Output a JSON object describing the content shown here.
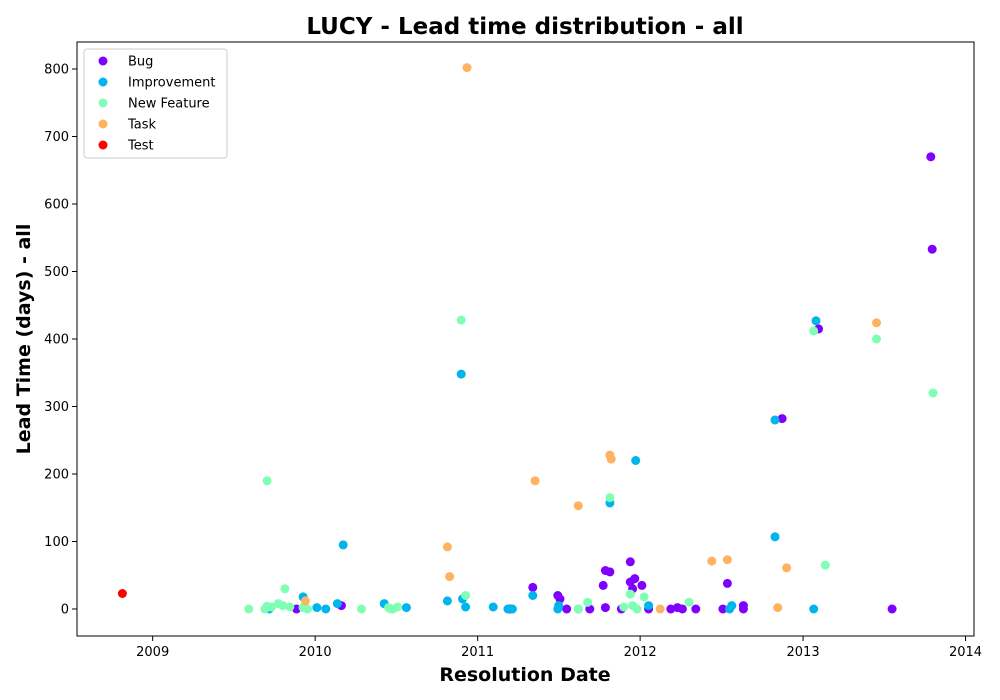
{
  "chart_data": {
    "type": "scatter",
    "title": "LUCY - Lead time distribution - all",
    "xlabel": "Resolution Date",
    "ylabel": "Lead Time (days) - all",
    "xlim": [
      "2008-07-15",
      "2014-01-20"
    ],
    "ylim": [
      -40,
      840
    ],
    "x_ticks": [
      "2009",
      "2010",
      "2011",
      "2012",
      "2013",
      "2014"
    ],
    "y_ticks": [
      0,
      100,
      200,
      300,
      400,
      500,
      600,
      700,
      800
    ],
    "grid": false,
    "legend_position": "top-left",
    "series": [
      {
        "name": "Bug",
        "color": "#8000ff",
        "points": [
          [
            "2009-11-20",
            0
          ],
          [
            "2010-03-01",
            5
          ],
          [
            "2011-03-15",
            0
          ],
          [
            "2011-05-05",
            32
          ],
          [
            "2011-06-30",
            20
          ],
          [
            "2011-07-05",
            15
          ],
          [
            "2011-07-20",
            0
          ],
          [
            "2011-09-10",
            0
          ],
          [
            "2011-10-10",
            35
          ],
          [
            "2011-10-15",
            57
          ],
          [
            "2011-10-25",
            55
          ],
          [
            "2011-10-15",
            2
          ],
          [
            "2011-11-20",
            0
          ],
          [
            "2011-12-10",
            70
          ],
          [
            "2011-12-10",
            40
          ],
          [
            "2011-12-20",
            45
          ],
          [
            "2012-01-05",
            35
          ],
          [
            "2011-12-15",
            30
          ],
          [
            "2012-01-20",
            0
          ],
          [
            "2012-03-10",
            0
          ],
          [
            "2012-03-25",
            2
          ],
          [
            "2012-04-05",
            0
          ],
          [
            "2012-05-05",
            0
          ],
          [
            "2012-07-05",
            0
          ],
          [
            "2012-07-15",
            38
          ],
          [
            "2012-08-20",
            5
          ],
          [
            "2012-08-20",
            0
          ],
          [
            "2012-11-15",
            282
          ],
          [
            "2013-02-05",
            415
          ],
          [
            "2013-07-20",
            0
          ],
          [
            "2013-10-15",
            670
          ],
          [
            "2013-10-18",
            533
          ]
        ]
      },
      {
        "name": "Improvement",
        "color": "#00b4ec",
        "points": [
          [
            "2009-09-20",
            0
          ],
          [
            "2009-12-05",
            18
          ],
          [
            "2010-01-05",
            2
          ],
          [
            "2010-01-25",
            0
          ],
          [
            "2010-02-20",
            8
          ],
          [
            "2010-03-05",
            95
          ],
          [
            "2010-06-05",
            8
          ],
          [
            "2010-07-25",
            2
          ],
          [
            "2010-10-25",
            12
          ],
          [
            "2010-11-25",
            348
          ],
          [
            "2010-11-28",
            15
          ],
          [
            "2010-12-05",
            3
          ],
          [
            "2011-02-05",
            3
          ],
          [
            "2011-03-10",
            0
          ],
          [
            "2011-03-20",
            0
          ],
          [
            "2011-05-05",
            20
          ],
          [
            "2011-06-30",
            0
          ],
          [
            "2011-07-02",
            5
          ],
          [
            "2011-08-15",
            0
          ],
          [
            "2011-10-25",
            157
          ],
          [
            "2011-12-22",
            220
          ],
          [
            "2012-01-20",
            5
          ],
          [
            "2012-07-20",
            0
          ],
          [
            "2012-07-25",
            5
          ],
          [
            "2012-10-30",
            107
          ],
          [
            "2012-10-30",
            280
          ],
          [
            "2013-01-25",
            0
          ],
          [
            "2013-01-30",
            427
          ]
        ]
      },
      {
        "name": "New Feature",
        "color": "#80ffb4",
        "points": [
          [
            "2009-08-05",
            0
          ],
          [
            "2009-09-10",
            0
          ],
          [
            "2009-09-15",
            4
          ],
          [
            "2009-09-15",
            190
          ],
          [
            "2009-09-25",
            3
          ],
          [
            "2009-10-10",
            8
          ],
          [
            "2009-10-25",
            30
          ],
          [
            "2009-10-20",
            5
          ],
          [
            "2009-11-05",
            3
          ],
          [
            "2009-12-05",
            2
          ],
          [
            "2009-12-15",
            0
          ],
          [
            "2010-04-15",
            0
          ],
          [
            "2010-06-15",
            2
          ],
          [
            "2010-06-20",
            0
          ],
          [
            "2010-06-25",
            0
          ],
          [
            "2010-07-05",
            3
          ],
          [
            "2010-11-25",
            428
          ],
          [
            "2010-12-05",
            20
          ],
          [
            "2011-08-15",
            0
          ],
          [
            "2011-09-05",
            10
          ],
          [
            "2011-10-25",
            165
          ],
          [
            "2011-11-25",
            3
          ],
          [
            "2011-12-10",
            22
          ],
          [
            "2011-12-15",
            5
          ],
          [
            "2011-12-25",
            0
          ],
          [
            "2012-01-10",
            18
          ],
          [
            "2012-04-20",
            10
          ],
          [
            "2013-01-25",
            412
          ],
          [
            "2013-02-20",
            65
          ],
          [
            "2013-06-15",
            400
          ],
          [
            "2013-10-20",
            320
          ]
        ]
      },
      {
        "name": "Task",
        "color": "#ffb360",
        "points": [
          [
            "2009-12-10",
            12
          ],
          [
            "2010-10-25",
            92
          ],
          [
            "2010-10-30",
            48
          ],
          [
            "2010-12-08",
            802
          ],
          [
            "2011-05-10",
            190
          ],
          [
            "2011-08-15",
            153
          ],
          [
            "2011-10-25",
            228
          ],
          [
            "2011-10-28",
            222
          ],
          [
            "2012-02-15",
            0
          ],
          [
            "2012-06-10",
            71
          ],
          [
            "2012-07-15",
            73
          ],
          [
            "2012-11-05",
            2
          ],
          [
            "2012-11-25",
            61
          ],
          [
            "2013-06-15",
            424
          ]
        ]
      },
      {
        "name": "Test",
        "color": "#ff0000",
        "points": [
          [
            "2008-10-25",
            23
          ]
        ]
      }
    ]
  }
}
